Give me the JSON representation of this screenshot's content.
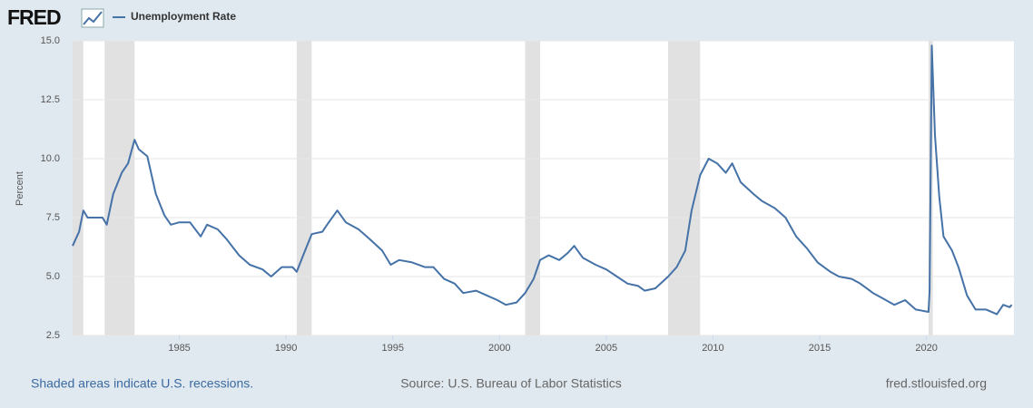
{
  "chart_data": {
    "type": "line",
    "logo": "FRED",
    "legend_label": "Unemployment Rate",
    "ylabel": "Percent",
    "note": "Shaded areas indicate U.S. recessions.",
    "source": "Source: U.S. Bureau of Labor Statistics",
    "site": "fred.stlouisfed.org",
    "color": "#4572a7",
    "grid": true,
    "xlim": [
      1980,
      2024.1
    ],
    "xticks": [
      1985,
      1990,
      1995,
      2000,
      2005,
      2010,
      2015,
      2020
    ],
    "ylim": [
      2.5,
      15
    ],
    "yticks": [
      {
        "value": 2.5,
        "label": "2.5"
      },
      {
        "value": 5,
        "label": "5.0"
      },
      {
        "value": 7.5,
        "label": "7.5"
      },
      {
        "value": 10,
        "label": "10.0"
      },
      {
        "value": 12.5,
        "label": "12.5"
      },
      {
        "value": 15,
        "label": "15.0"
      }
    ],
    "recessions": [
      [
        1980.0,
        1980.5
      ],
      [
        1981.5,
        1982.9
      ],
      [
        1990.5,
        1991.2
      ],
      [
        2001.2,
        2001.9
      ],
      [
        2007.9,
        2009.4
      ],
      [
        2020.1,
        2020.3
      ]
    ],
    "x": [
      1980.0,
      1980.3,
      1980.5,
      1980.7,
      1981.0,
      1981.4,
      1981.6,
      1981.9,
      1982.3,
      1982.6,
      1982.9,
      1983.1,
      1983.5,
      1983.9,
      1984.3,
      1984.6,
      1985.0,
      1985.5,
      1986.0,
      1986.3,
      1986.8,
      1987.2,
      1987.8,
      1988.3,
      1988.9,
      1989.3,
      1989.8,
      1990.3,
      1990.5,
      1990.8,
      1991.2,
      1991.7,
      1992.0,
      1992.4,
      1992.8,
      1993.4,
      1993.9,
      1994.5,
      1994.9,
      1995.3,
      1995.9,
      1996.5,
      1996.9,
      1997.4,
      1997.9,
      1998.3,
      1998.9,
      1999.4,
      1999.9,
      2000.3,
      2000.8,
      2001.2,
      2001.6,
      2001.9,
      2002.3,
      2002.8,
      2003.2,
      2003.5,
      2003.9,
      2004.5,
      2005.0,
      2005.5,
      2006.0,
      2006.5,
      2006.8,
      2007.3,
      2007.9,
      2008.3,
      2008.7,
      2009.0,
      2009.4,
      2009.8,
      2010.2,
      2010.6,
      2010.9,
      2011.3,
      2011.9,
      2012.3,
      2012.9,
      2013.4,
      2013.9,
      2014.4,
      2014.9,
      2015.5,
      2015.9,
      2016.5,
      2016.9,
      2017.5,
      2017.9,
      2018.5,
      2019.0,
      2019.5,
      2020.1,
      2020.15,
      2020.25,
      2020.4,
      2020.6,
      2020.8,
      2021.2,
      2021.5,
      2021.9,
      2022.3,
      2022.8,
      2023.3,
      2023.6,
      2023.9,
      2024.0
    ],
    "values": [
      6.3,
      6.9,
      7.8,
      7.5,
      7.5,
      7.5,
      7.2,
      8.5,
      9.4,
      9.8,
      10.8,
      10.4,
      10.1,
      8.5,
      7.6,
      7.2,
      7.3,
      7.3,
      6.7,
      7.2,
      7.0,
      6.6,
      5.9,
      5.5,
      5.3,
      5.0,
      5.4,
      5.4,
      5.2,
      5.9,
      6.8,
      6.9,
      7.3,
      7.8,
      7.3,
      7.0,
      6.6,
      6.1,
      5.5,
      5.7,
      5.6,
      5.4,
      5.4,
      4.9,
      4.7,
      4.3,
      4.4,
      4.2,
      4.0,
      3.8,
      3.9,
      4.3,
      4.9,
      5.7,
      5.9,
      5.7,
      6.0,
      6.3,
      5.8,
      5.5,
      5.3,
      5.0,
      4.7,
      4.6,
      4.4,
      4.5,
      5.0,
      5.4,
      6.1,
      7.8,
      9.3,
      10.0,
      9.8,
      9.4,
      9.8,
      9.0,
      8.5,
      8.2,
      7.9,
      7.5,
      6.7,
      6.2,
      5.6,
      5.2,
      5.0,
      4.9,
      4.7,
      4.3,
      4.1,
      3.8,
      4.0,
      3.6,
      3.5,
      4.4,
      14.8,
      11.0,
      8.4,
      6.7,
      6.1,
      5.4,
      4.2,
      3.6,
      3.6,
      3.4,
      3.8,
      3.7,
      3.8
    ]
  }
}
